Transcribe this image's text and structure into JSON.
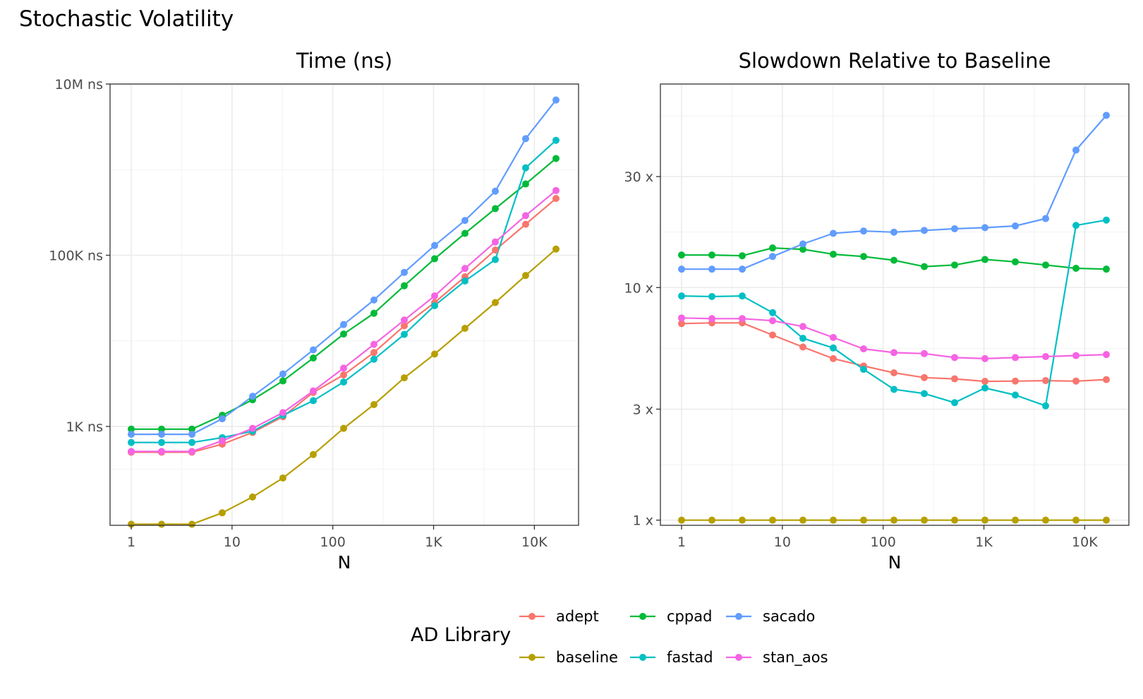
{
  "title": "Stochastic Volatility",
  "legend": {
    "title": "AD Library",
    "items": [
      "adept",
      "cppad",
      "sacado",
      "baseline",
      "fastad",
      "stan_aos"
    ]
  },
  "colors": {
    "adept": "#F8766D",
    "baseline": "#B79F00",
    "cppad": "#00BA38",
    "fastad": "#00BFC4",
    "sacado": "#619CFF",
    "stan_aos": "#F564E3"
  },
  "chart_data": [
    {
      "type": "line",
      "title": "Time (ns)",
      "xlabel": "N",
      "ylabel": "",
      "x_scale": "log10",
      "y_scale": "log10",
      "grid": true,
      "xlim": [
        1,
        16384
      ],
      "ylim": [
        70,
        10000000
      ],
      "x_ticks": [
        1,
        10,
        100,
        1000,
        10000
      ],
      "x_tick_labels": [
        "1",
        "10",
        "100",
        "1K",
        "10K"
      ],
      "y_ticks": [
        1000,
        100000,
        10000000
      ],
      "y_tick_labels": [
        "1K ns",
        "100K ns",
        "10M ns"
      ],
      "x": [
        1,
        2,
        4,
        8,
        16,
        32,
        64,
        128,
        256,
        512,
        1024,
        2048,
        4096,
        8192,
        16384
      ],
      "series": [
        {
          "name": "adept",
          "values": [
            500,
            500,
            500,
            620,
            850,
            1300,
            2500,
            4000,
            7300,
            15000,
            28000,
            56000,
            115000,
            230000,
            460000
          ]
        },
        {
          "name": "baseline",
          "values": [
            72,
            72,
            72,
            98,
            150,
            250,
            470,
            950,
            1800,
            3700,
            7000,
            14000,
            28000,
            58000,
            118000
          ]
        },
        {
          "name": "cppad",
          "values": [
            930,
            930,
            930,
            1350,
            2050,
            3400,
            6300,
            12000,
            21000,
            44000,
            91000,
            180000,
            350000,
            680000,
            1350000
          ]
        },
        {
          "name": "fastad",
          "values": [
            650,
            650,
            650,
            740,
            880,
            1350,
            2000,
            3300,
            6100,
            11900,
            25800,
            50000,
            89000,
            1050000,
            2200000
          ]
        },
        {
          "name": "sacado",
          "values": [
            810,
            810,
            810,
            1230,
            2250,
            4100,
            7850,
            15500,
            30000,
            63000,
            130000,
            255000,
            560000,
            2300000,
            6500000
          ]
        },
        {
          "name": "stan_aos",
          "values": [
            510,
            510,
            510,
            680,
            950,
            1450,
            2600,
            4800,
            9100,
            17500,
            33500,
            70000,
            143000,
            290000,
            570000
          ]
        }
      ]
    },
    {
      "type": "line",
      "title": "Slowdown Relative to Baseline",
      "xlabel": "N",
      "ylabel": "",
      "x_scale": "log10",
      "y_scale": "log10",
      "grid": true,
      "xlim": [
        1,
        16384
      ],
      "ylim": [
        0.95,
        75
      ],
      "x_ticks": [
        1,
        10,
        100,
        1000,
        10000
      ],
      "x_tick_labels": [
        "1",
        "10",
        "100",
        "1K",
        "10K"
      ],
      "y_ticks": [
        1,
        3,
        10,
        30
      ],
      "y_tick_labels": [
        "1 x",
        "3 x",
        "10 x",
        "30 x"
      ],
      "x": [
        1,
        2,
        4,
        8,
        16,
        32,
        64,
        128,
        256,
        512,
        1024,
        2048,
        4096,
        8192,
        16384
      ],
      "series": [
        {
          "name": "adept",
          "values": [
            7.0,
            7.05,
            7.05,
            6.25,
            5.55,
            4.95,
            4.6,
            4.3,
            4.1,
            4.05,
            3.95,
            3.96,
            3.98,
            3.96,
            4.02
          ]
        },
        {
          "name": "baseline",
          "values": [
            1,
            1,
            1,
            1,
            1,
            1,
            1,
            1,
            1,
            1,
            1,
            1,
            1,
            1,
            1
          ]
        },
        {
          "name": "cppad",
          "values": [
            13.8,
            13.8,
            13.7,
            14.8,
            14.6,
            13.9,
            13.6,
            13.1,
            12.3,
            12.5,
            13.2,
            12.9,
            12.5,
            12.1,
            12.0
          ]
        },
        {
          "name": "fastad",
          "values": [
            9.2,
            9.15,
            9.2,
            7.8,
            6.05,
            5.5,
            4.45,
            3.65,
            3.5,
            3.2,
            3.7,
            3.45,
            3.1,
            18.5,
            19.5
          ]
        },
        {
          "name": "sacado",
          "values": [
            12.0,
            12.0,
            12.0,
            13.6,
            15.4,
            17.1,
            17.5,
            17.3,
            17.6,
            17.9,
            18.1,
            18.4,
            19.8,
            39.0,
            55.0
          ]
        },
        {
          "name": "stan_aos",
          "values": [
            7.4,
            7.35,
            7.35,
            7.2,
            6.8,
            6.1,
            5.45,
            5.25,
            5.2,
            5.0,
            4.95,
            5.0,
            5.05,
            5.1,
            5.15
          ]
        }
      ]
    }
  ]
}
